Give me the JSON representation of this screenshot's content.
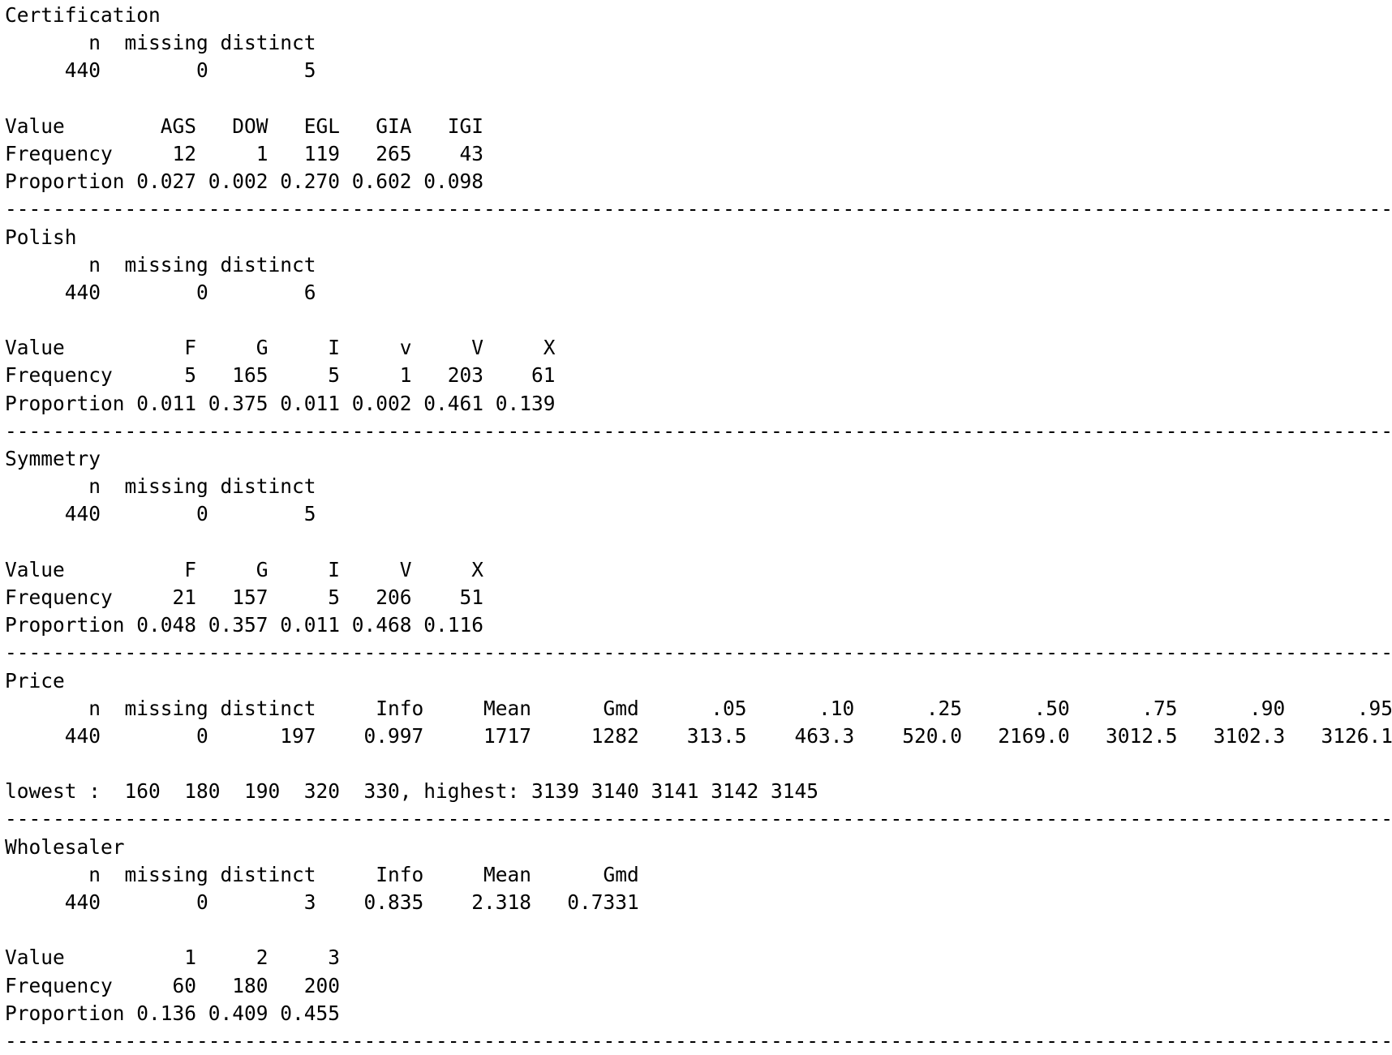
{
  "lines": [
    "Certification",
    "       n  missing distinct",
    "     440        0        5",
    "",
    "Value        AGS   DOW   EGL   GIA   IGI",
    "Frequency     12     1   119   265    43",
    "Proportion 0.027 0.002 0.270 0.602 0.098",
    "-----------------------------------------------------------------------------------------------------------------------",
    "Polish",
    "       n  missing distinct",
    "     440        0        6",
    "",
    "Value          F     G     I     v     V     X",
    "Frequency      5   165     5     1   203    61",
    "Proportion 0.011 0.375 0.011 0.002 0.461 0.139",
    "-----------------------------------------------------------------------------------------------------------------------",
    "Symmetry",
    "       n  missing distinct",
    "     440        0        5",
    "",
    "Value          F     G     I     V     X",
    "Frequency     21   157     5   206    51",
    "Proportion 0.048 0.357 0.011 0.468 0.116",
    "-----------------------------------------------------------------------------------------------------------------------",
    "Price",
    "       n  missing distinct     Info     Mean      Gmd      .05      .10      .25      .50      .75      .90      .95",
    "     440        0      197    0.997     1717     1282    313.5    463.3    520.0   2169.0   3012.5   3102.3   3126.1",
    "",
    "lowest :  160  180  190  320  330, highest: 3139 3140 3141 3142 3145",
    "-----------------------------------------------------------------------------------------------------------------------",
    "Wholesaler",
    "       n  missing distinct     Info     Mean      Gmd",
    "     440        0        3    0.835    2.318   0.7331",
    "",
    "Value          1     2     3",
    "Frequency     60   180   200",
    "Proportion 0.136 0.409 0.455",
    "-----------------------------------------------------------------------------------------------------------------------"
  ]
}
